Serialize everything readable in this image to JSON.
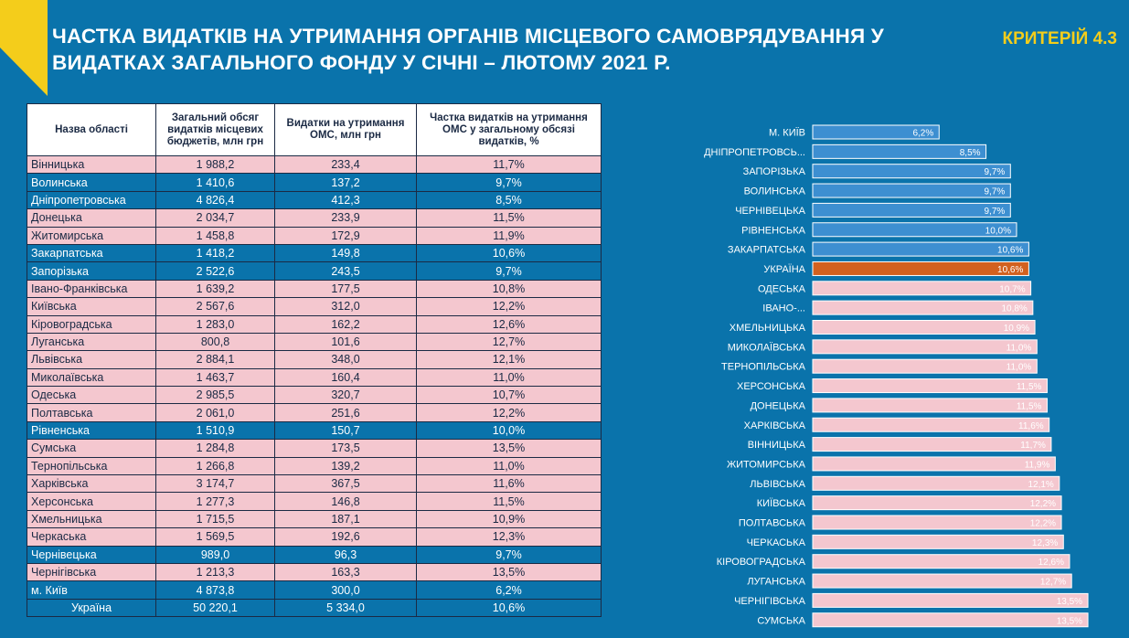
{
  "header": {
    "title_line1": "ЧАСТКА ВИДАТКІВ НА УТРИМАННЯ ОРГАНІВ МІСЦЕВОГО САМОВРЯДУВАННЯ У",
    "title_line2": "ВИДАТКАХ ЗАГАЛЬНОГО ФОНДУ У СІЧНІ – ЛЮТОМУ 2021 Р.",
    "criterion": "КРИТЕРІЙ 4.3"
  },
  "colors": {
    "background": "#0a73ab",
    "accent_yellow": "#f4cd1b",
    "row_pink": "#f4c7cf",
    "bar_blue": "#3d8fd1",
    "bar_orange": "#d2611f"
  },
  "table": {
    "headers": [
      "Назва області",
      "Загальний обсяг видатків місцевих бюджетів, млн грн",
      "Видатки на утримання ОМС, млн грн",
      "Частка видатків на утримання ОМС у загальному обсязі видатків, %"
    ],
    "rows": [
      {
        "name": "Вінницька",
        "total": "1 988,2",
        "oms": "233,4",
        "share": "11,7%",
        "style": "pink"
      },
      {
        "name": "Волинська",
        "total": "1 410,6",
        "oms": "137,2",
        "share": "9,7%",
        "style": "blue"
      },
      {
        "name": "Дніпропетровська",
        "total": "4 826,4",
        "oms": "412,3",
        "share": "8,5%",
        "style": "blue"
      },
      {
        "name": "Донецька",
        "total": "2 034,7",
        "oms": "233,9",
        "share": "11,5%",
        "style": "pink"
      },
      {
        "name": "Житомирська",
        "total": "1 458,8",
        "oms": "172,9",
        "share": "11,9%",
        "style": "pink"
      },
      {
        "name": "Закарпатська",
        "total": "1 418,2",
        "oms": "149,8",
        "share": "10,6%",
        "style": "blue"
      },
      {
        "name": "Запорізька",
        "total": "2 522,6",
        "oms": "243,5",
        "share": "9,7%",
        "style": "blue"
      },
      {
        "name": "Івано-Франківська",
        "total": "1 639,2",
        "oms": "177,5",
        "share": "10,8%",
        "style": "pink"
      },
      {
        "name": "Київська",
        "total": "2 567,6",
        "oms": "312,0",
        "share": "12,2%",
        "style": "pink"
      },
      {
        "name": "Кіровоградська",
        "total": "1 283,0",
        "oms": "162,2",
        "share": "12,6%",
        "style": "pink"
      },
      {
        "name": "Луганська",
        "total": "800,8",
        "oms": "101,6",
        "share": "12,7%",
        "style": "pink"
      },
      {
        "name": "Львівська",
        "total": "2 884,1",
        "oms": "348,0",
        "share": "12,1%",
        "style": "pink"
      },
      {
        "name": "Миколаївська",
        "total": "1 463,7",
        "oms": "160,4",
        "share": "11,0%",
        "style": "pink"
      },
      {
        "name": "Одеська",
        "total": "2 985,5",
        "oms": "320,7",
        "share": "10,7%",
        "style": "pink"
      },
      {
        "name": "Полтавська",
        "total": "2 061,0",
        "oms": "251,6",
        "share": "12,2%",
        "style": "pink"
      },
      {
        "name": "Рівненська",
        "total": "1 510,9",
        "oms": "150,7",
        "share": "10,0%",
        "style": "blue"
      },
      {
        "name": "Сумська",
        "total": "1 284,8",
        "oms": "173,5",
        "share": "13,5%",
        "style": "pink"
      },
      {
        "name": "Тернопільська",
        "total": "1 266,8",
        "oms": "139,2",
        "share": "11,0%",
        "style": "pink"
      },
      {
        "name": "Харківська",
        "total": "3 174,7",
        "oms": "367,5",
        "share": "11,6%",
        "style": "pink"
      },
      {
        "name": "Херсонська",
        "total": "1 277,3",
        "oms": "146,8",
        "share": "11,5%",
        "style": "pink"
      },
      {
        "name": "Хмельницька",
        "total": "1 715,5",
        "oms": "187,1",
        "share": "10,9%",
        "style": "pink"
      },
      {
        "name": "Черкаська",
        "total": "1 569,5",
        "oms": "192,6",
        "share": "12,3%",
        "style": "pink"
      },
      {
        "name": "Чернівецька",
        "total": "989,0",
        "oms": "96,3",
        "share": "9,7%",
        "style": "blue"
      },
      {
        "name": "Чернігівська",
        "total": "1 213,3",
        "oms": "163,3",
        "share": "13,5%",
        "style": "pink"
      },
      {
        "name": "м. Київ",
        "total": "4 873,8",
        "oms": "300,0",
        "share": "6,2%",
        "style": "blue"
      },
      {
        "name": "Україна",
        "total": "50 220,1",
        "oms": "5 334,0",
        "share": "10,6%",
        "style": "total"
      }
    ]
  },
  "chart_data": {
    "type": "bar",
    "orientation": "horizontal",
    "categories": [
      "М. КИЇВ",
      "ДНІПРОПЕТРОВСЬ...",
      "ЗАПОРІЗЬКА",
      "ВОЛИНСЬКА",
      "ЧЕРНІВЕЦЬКА",
      "РІВНЕНСЬКА",
      "ЗАКАРПАТСЬКА",
      "УКРАЇНА",
      "ОДЕСЬКА",
      "ІВАНО-...",
      "ХМЕЛЬНИЦЬКА",
      "МИКОЛАЇВСЬКА",
      "ТЕРНОПІЛЬСЬКА",
      "ХЕРСОНСЬКА",
      "ДОНЕЦЬКА",
      "ХАРКІВСЬКА",
      "ВІННИЦЬКА",
      "ЖИТОМИРСЬКА",
      "ЛЬВІВСЬКА",
      "КИЇВСЬКА",
      "ПОЛТАВСЬКА",
      "ЧЕРКАСЬКА",
      "КІРОВОГРАДСЬКА",
      "ЛУГАНСЬКА",
      "ЧЕРНІГІВСЬКА",
      "СУМСЬКА"
    ],
    "values": [
      6.2,
      8.5,
      9.7,
      9.7,
      9.7,
      10.0,
      10.6,
      10.6,
      10.7,
      10.8,
      10.9,
      11.0,
      11.0,
      11.5,
      11.5,
      11.6,
      11.7,
      11.9,
      12.1,
      12.2,
      12.2,
      12.3,
      12.6,
      12.7,
      13.5,
      13.5
    ],
    "labels": [
      "6,2%",
      "8,5%",
      "9,7%",
      "9,7%",
      "9,7%",
      "10,0%",
      "10,6%",
      "10,6%",
      "10,7%",
      "10,8%",
      "10,9%",
      "11,0%",
      "11,0%",
      "11,5%",
      "11,5%",
      "11,6%",
      "11,7%",
      "11,9%",
      "12,1%",
      "12,2%",
      "12,2%",
      "12,3%",
      "12,6%",
      "12,7%",
      "13,5%",
      "13,5%"
    ],
    "bar_style": [
      "blue",
      "blue",
      "blue",
      "blue",
      "blue",
      "blue",
      "blue",
      "orange",
      "pink",
      "pink",
      "pink",
      "pink",
      "pink",
      "pink",
      "pink",
      "pink",
      "pink",
      "pink",
      "pink",
      "pink",
      "pink",
      "pink",
      "pink",
      "pink",
      "pink",
      "pink"
    ],
    "xlim": [
      0,
      15
    ],
    "grid": false,
    "legend": false
  }
}
